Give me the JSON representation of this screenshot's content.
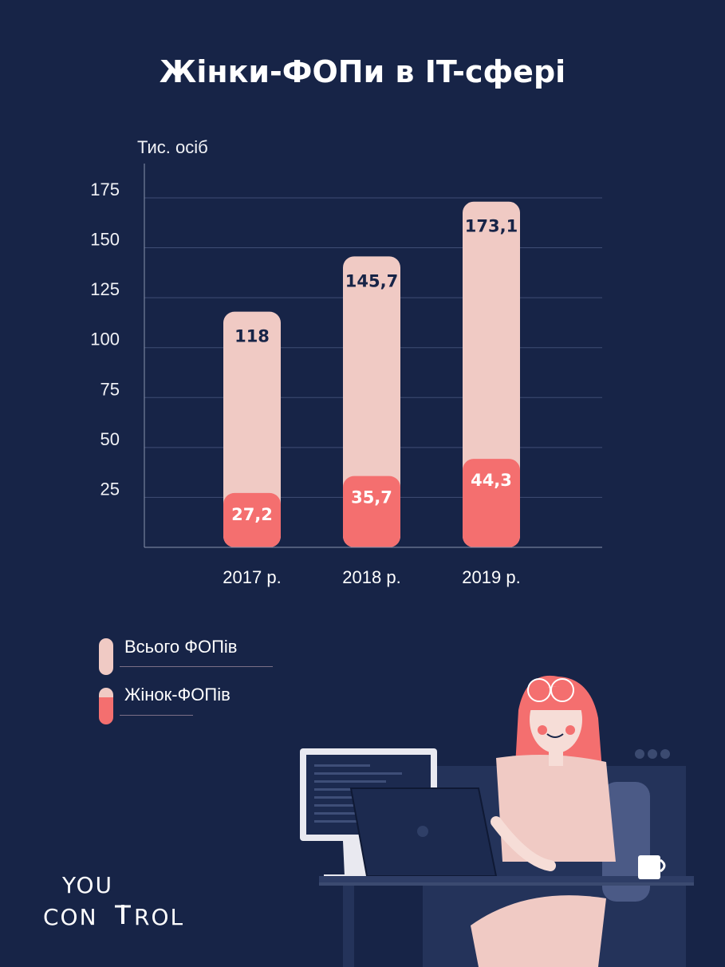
{
  "chart_data": {
    "type": "bar",
    "title": "Жінки-ФОПи в IT-сфері",
    "ylabel": "Тис. осіб",
    "categories": [
      "2017 р.",
      "2018 р.",
      "2019 р."
    ],
    "series": [
      {
        "name": "Всього ФОПів",
        "values": [
          118,
          145.7,
          173.1
        ],
        "labels": [
          "118",
          "145,7",
          "173,1"
        ],
        "color": "#f0cac4"
      },
      {
        "name": "Жінок-ФОПів",
        "values": [
          27.2,
          35.7,
          44.3
        ],
        "labels": [
          "27,2",
          "35,7",
          "44,3"
        ],
        "color": "#f46f6f"
      }
    ],
    "yticks": [
      25,
      50,
      75,
      100,
      125,
      150,
      175
    ],
    "ylim": [
      0,
      185
    ],
    "grid": true,
    "legend": "bottom-left",
    "overlapping": true
  },
  "logo": {
    "line1": "YOU",
    "line2a": "CON",
    "line2b": "ROL"
  },
  "colors": {
    "background": "#172447",
    "total": "#f0cac4",
    "women": "#f46f6f",
    "text_dark": "#172447"
  }
}
